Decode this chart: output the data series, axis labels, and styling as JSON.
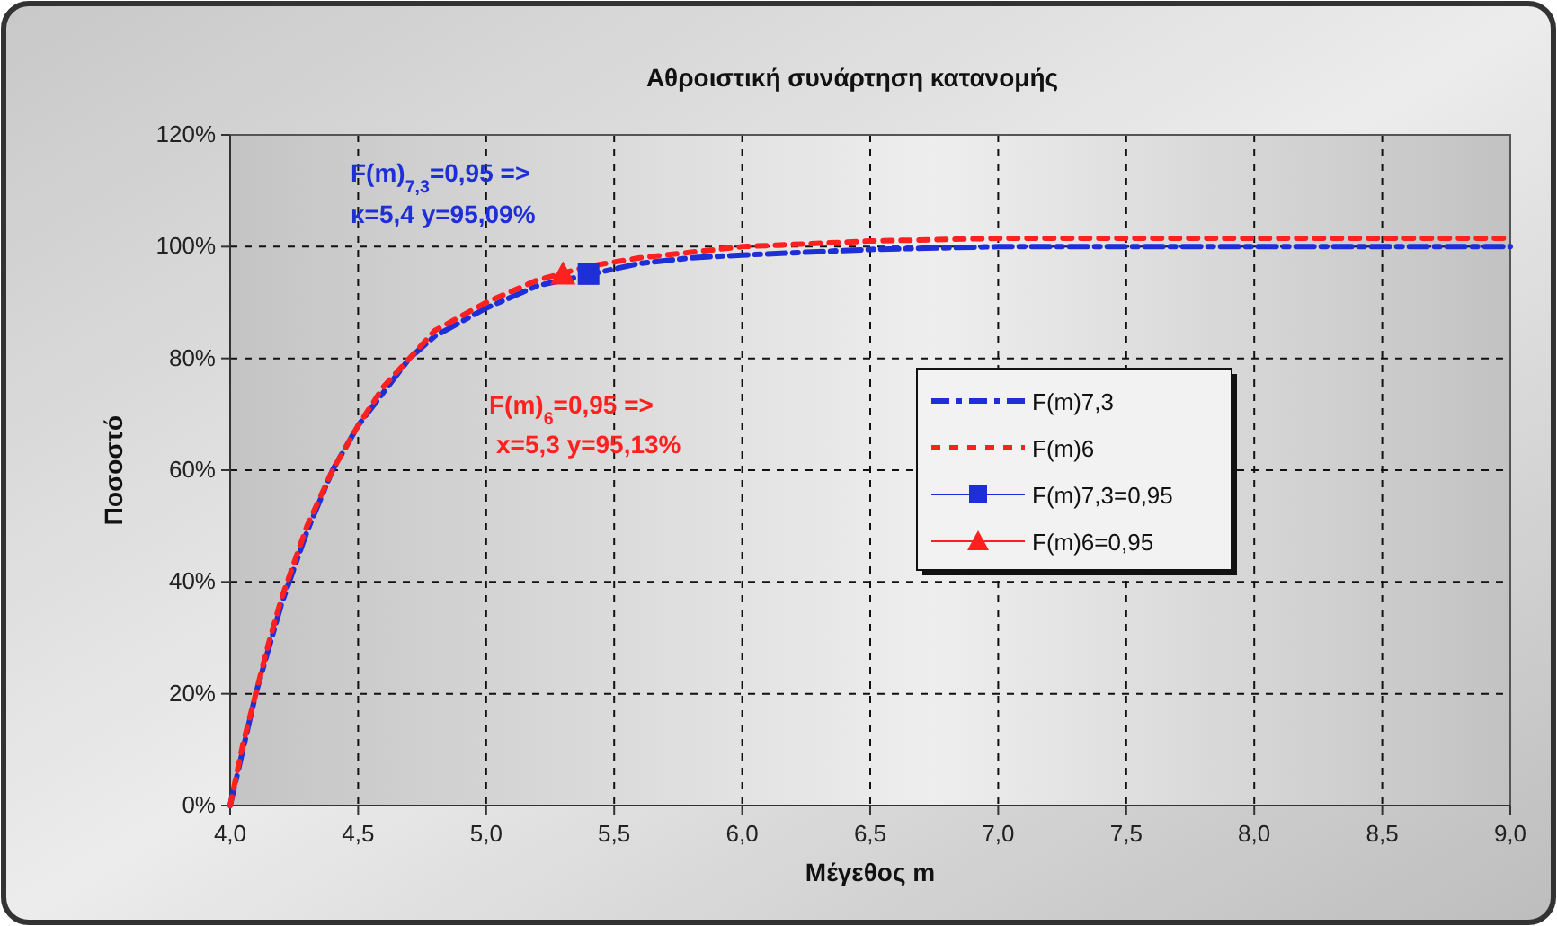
{
  "chart_data": {
    "type": "line",
    "title": "Αθροιστική συνάρτηση κατανομής",
    "xlabel": "Μέγεθος m",
    "ylabel": "Ποσοστό",
    "xlim": [
      4,
      9
    ],
    "xticks": [
      {
        "value": 4,
        "label": "4,0"
      },
      {
        "value": 4.5,
        "label": "4,5"
      },
      {
        "value": 5,
        "label": "5,0"
      },
      {
        "value": 5.5,
        "label": "5,5"
      },
      {
        "value": 6,
        "label": "6,0"
      },
      {
        "value": 6.5,
        "label": "6,5"
      },
      {
        "value": 7,
        "label": "7,0"
      },
      {
        "value": 7.5,
        "label": "7,5"
      },
      {
        "value": 8,
        "label": "8,0"
      },
      {
        "value": 8.5,
        "label": "8,5"
      },
      {
        "value": 9,
        "label": "9,0"
      }
    ],
    "ylim": [
      0,
      120
    ],
    "yticks": [
      {
        "value": 0,
        "label": "0%"
      },
      {
        "value": 20,
        "label": "20%"
      },
      {
        "value": 40,
        "label": "40%"
      },
      {
        "value": 60,
        "label": "60%"
      },
      {
        "value": 80,
        "label": "80%"
      },
      {
        "value": 100,
        "label": "100%"
      },
      {
        "value": 120,
        "label": "120%"
      }
    ],
    "grid": true,
    "legend": "right",
    "x": [
      4.0,
      4.05,
      4.1,
      4.15,
      4.2,
      4.3,
      4.4,
      4.5,
      4.6,
      4.7,
      4.8,
      5.0,
      5.2,
      5.4,
      5.6,
      5.8,
      6.0,
      6.5,
      7.0,
      7.5,
      8.0,
      8.5,
      9.0
    ],
    "series": [
      {
        "name": "F(m)7,3",
        "color": "#1f2fd8",
        "line_style": "dashed",
        "marker": "none",
        "values": [
          0,
          10,
          20,
          28,
          36,
          49,
          60,
          68,
          74,
          80,
          84,
          89,
          93,
          95,
          97,
          98,
          98.5,
          99.5,
          100,
          100,
          100,
          100,
          100
        ]
      },
      {
        "name": "F(m)6",
        "color": "#ff2020",
        "line_style": "dotted",
        "marker": "none",
        "values": [
          0,
          11,
          20,
          29,
          37,
          50,
          60,
          68,
          75,
          80,
          85,
          90,
          94,
          96.5,
          98,
          99,
          100,
          101,
          101.5,
          101.5,
          101.5,
          101.5,
          101.5
        ]
      },
      {
        "name": "F(m)7,3=0,95",
        "type": "scatter",
        "color": "#1f2fd8",
        "marker": "square",
        "x": [
          5.4
        ],
        "values": [
          95.09
        ]
      },
      {
        "name": "F(m)6=0,95",
        "type": "scatter",
        "color": "#ff2020",
        "marker": "triangle",
        "x": [
          5.3
        ],
        "values": [
          95.13
        ]
      }
    ],
    "annotations": [
      "F(m)$_{7,3}$=0,95 =>",
      "κ=5,4 y=95,09%",
      "F(m)$_{6}$=0,95 =>",
      "x=5,3 y=95,13%"
    ]
  }
}
